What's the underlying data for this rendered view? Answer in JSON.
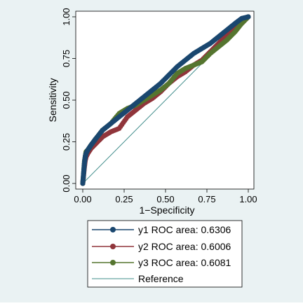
{
  "chart_data": {
    "type": "line",
    "xlabel": "1−Specificity",
    "ylabel": "Sensitivity",
    "xlim": [
      0,
      1
    ],
    "ylim": [
      0,
      1
    ],
    "xticks": [
      "0.00",
      "0.25",
      "0.50",
      "0.75",
      "1.00"
    ],
    "yticks": [
      "0.00",
      "0.25",
      "0.50",
      "0.75",
      "1.00"
    ],
    "grid": false,
    "legend_placement": "bottom",
    "series": [
      {
        "name": "y1 ROC area: 0.6306",
        "color": "#1a476f",
        "marker": "circle",
        "x": [
          0.0,
          0.005,
          0.01,
          0.015,
          0.02,
          0.03,
          0.05,
          0.08,
          0.12,
          0.17,
          0.22,
          0.27,
          0.32,
          0.37,
          0.42,
          0.47,
          0.52,
          0.57,
          0.62,
          0.67,
          0.72,
          0.77,
          0.82,
          0.87,
          0.92,
          0.96,
          1.0
        ],
        "y": [
          0.0,
          0.06,
          0.12,
          0.16,
          0.18,
          0.2,
          0.23,
          0.27,
          0.32,
          0.36,
          0.4,
          0.44,
          0.48,
          0.52,
          0.56,
          0.6,
          0.65,
          0.7,
          0.74,
          0.78,
          0.81,
          0.84,
          0.88,
          0.92,
          0.96,
          0.99,
          1.0
        ]
      },
      {
        "name": "y2 ROC area: 0.6006",
        "color": "#90353b",
        "marker": "circle",
        "x": [
          0.0,
          0.005,
          0.01,
          0.015,
          0.02,
          0.03,
          0.05,
          0.08,
          0.12,
          0.17,
          0.22,
          0.27,
          0.32,
          0.37,
          0.42,
          0.47,
          0.52,
          0.57,
          0.62,
          0.67,
          0.72,
          0.77,
          0.82,
          0.87,
          0.92,
          0.96,
          1.0
        ],
        "y": [
          0.0,
          0.05,
          0.1,
          0.14,
          0.16,
          0.18,
          0.21,
          0.24,
          0.28,
          0.31,
          0.33,
          0.4,
          0.44,
          0.48,
          0.51,
          0.55,
          0.6,
          0.64,
          0.67,
          0.71,
          0.74,
          0.79,
          0.84,
          0.89,
          0.93,
          0.96,
          1.0
        ]
      },
      {
        "name": "y3 ROC area: 0.6081",
        "color": "#55752f",
        "marker": "circle",
        "x": [
          0.0,
          0.005,
          0.01,
          0.015,
          0.02,
          0.03,
          0.05,
          0.08,
          0.12,
          0.17,
          0.22,
          0.27,
          0.32,
          0.37,
          0.42,
          0.47,
          0.52,
          0.57,
          0.62,
          0.67,
          0.72,
          0.77,
          0.82,
          0.87,
          0.92,
          0.96,
          1.0
        ],
        "y": [
          0.0,
          0.06,
          0.13,
          0.16,
          0.19,
          0.2,
          0.23,
          0.27,
          0.32,
          0.36,
          0.42,
          0.45,
          0.47,
          0.5,
          0.53,
          0.56,
          0.6,
          0.66,
          0.69,
          0.71,
          0.73,
          0.78,
          0.82,
          0.86,
          0.91,
          0.96,
          1.0
        ]
      },
      {
        "name": "Reference",
        "color": "#3f8c8a",
        "marker": "none",
        "x": [
          0,
          1
        ],
        "y": [
          0,
          1
        ]
      }
    ]
  }
}
